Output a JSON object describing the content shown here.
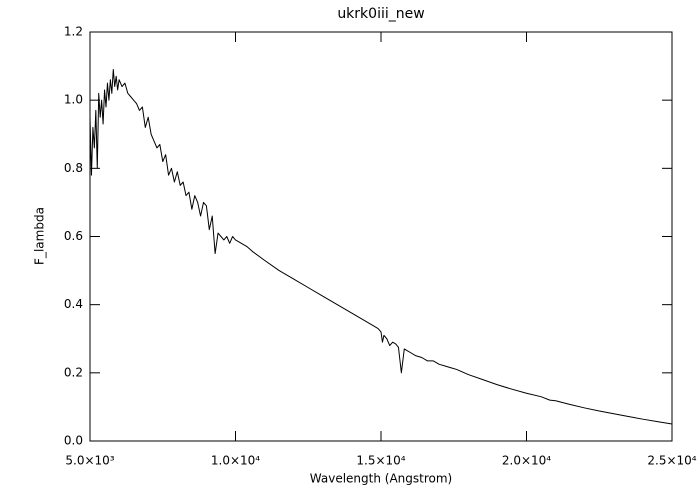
{
  "chart_data": {
    "type": "line",
    "title": "ukrk0iii_new",
    "x_label": "Wavelength (Angstrom)",
    "y_label": "F_lambda",
    "xlim": [
      5000,
      25000
    ],
    "xticks": [
      {
        "value": 5000,
        "label": "5.0×10³"
      },
      {
        "value": 10000,
        "label": "1.0×10⁴"
      },
      {
        "value": 15000,
        "label": "1.5×10⁴"
      },
      {
        "value": 20000,
        "label": "2.0×10⁴"
      },
      {
        "value": 25000,
        "label": "2.5×10⁴"
      }
    ],
    "ylim": [
      0,
      1.2
    ],
    "yticks": [
      {
        "value": 0,
        "label": "0.0"
      },
      0.2,
      0.4,
      0.6,
      0.8,
      {
        "value": 1,
        "label": "1.0"
      },
      1.2
    ],
    "grid": false,
    "series": [
      {
        "color": "#000000",
        "x": [
          5000,
          5050,
          5100,
          5150,
          5200,
          5250,
          5300,
          5350,
          5400,
          5450,
          5500,
          5550,
          5600,
          5650,
          5700,
          5750,
          5800,
          5850,
          5900,
          5950,
          6000,
          6100,
          6200,
          6300,
          6400,
          6500,
          6600,
          6700,
          6800,
          6900,
          7000,
          7100,
          7200,
          7300,
          7400,
          7500,
          7600,
          7700,
          7800,
          7900,
          8000,
          8100,
          8200,
          8300,
          8400,
          8500,
          8600,
          8700,
          8800,
          8900,
          9000,
          9100,
          9200,
          9300,
          9400,
          9500,
          9600,
          9700,
          9800,
          9900,
          10000,
          10200,
          10400,
          10600,
          11000,
          11500,
          12000,
          12500,
          13000,
          13500,
          14000,
          14500,
          14900,
          15000,
          15050,
          15100,
          15200,
          15300,
          15400,
          15500,
          15600,
          15700,
          15800,
          15900,
          16000,
          16200,
          16400,
          16600,
          16800,
          17000,
          17200,
          17400,
          17600,
          18000,
          18500,
          19000,
          19500,
          20000,
          20500,
          20800,
          21000,
          21500,
          22000,
          22500,
          23000,
          23500,
          24000,
          24500,
          25000
        ],
        "values": [
          0.95,
          0.78,
          0.92,
          0.86,
          0.97,
          0.8,
          1.02,
          0.95,
          1.0,
          0.93,
          1.03,
          0.98,
          1.05,
          1.0,
          1.06,
          1.02,
          1.09,
          1.04,
          1.07,
          1.03,
          1.06,
          1.04,
          1.05,
          1.02,
          1.01,
          1.0,
          0.99,
          0.97,
          0.98,
          0.92,
          0.95,
          0.9,
          0.88,
          0.86,
          0.87,
          0.82,
          0.84,
          0.78,
          0.8,
          0.76,
          0.79,
          0.75,
          0.76,
          0.72,
          0.73,
          0.68,
          0.72,
          0.7,
          0.66,
          0.7,
          0.69,
          0.62,
          0.66,
          0.55,
          0.61,
          0.6,
          0.59,
          0.6,
          0.58,
          0.6,
          0.59,
          0.58,
          0.57,
          0.555,
          0.53,
          0.5,
          0.475,
          0.45,
          0.425,
          0.4,
          0.375,
          0.35,
          0.33,
          0.32,
          0.29,
          0.31,
          0.3,
          0.28,
          0.29,
          0.285,
          0.275,
          0.2,
          0.27,
          0.265,
          0.26,
          0.25,
          0.245,
          0.235,
          0.235,
          0.225,
          0.22,
          0.215,
          0.21,
          0.195,
          0.18,
          0.165,
          0.152,
          0.14,
          0.13,
          0.12,
          0.118,
          0.107,
          0.097,
          0.088,
          0.08,
          0.072,
          0.064,
          0.057,
          0.05
        ]
      }
    ]
  }
}
